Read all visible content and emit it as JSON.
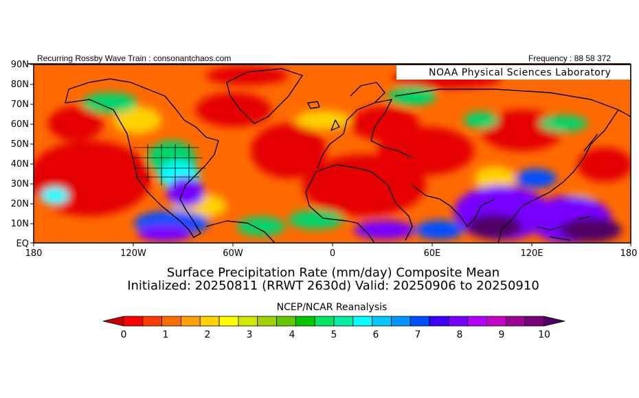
{
  "header": {
    "left": "Recurring Rossby Wave Train : consonantchaos.com",
    "right": "Frequency : 88 58 372",
    "lab": "NOAA Physical Sciences Laboratory"
  },
  "axes": {
    "lat_labels": [
      "90N",
      "80N",
      "70N",
      "60N",
      "50N",
      "40N",
      "30N",
      "20N",
      "10N",
      "EQ"
    ],
    "lon_labels": [
      "180",
      "120W",
      "60W",
      "0",
      "60E",
      "120E",
      "180"
    ]
  },
  "title": {
    "line1": "Surface Precipitation Rate (mm/day) Composite Mean",
    "line2": "Initialized: 20250811 (RRWT 2630d) Valid: 20250906 to 20250910",
    "source": "NCEP/NCAR Reanalysis"
  },
  "colorbar": {
    "labels": [
      "0",
      "1",
      "2",
      "3",
      "4",
      "5",
      "6",
      "7",
      "8",
      "9",
      "10"
    ],
    "colors": [
      "#c80000",
      "#ff0000",
      "#ff3c00",
      "#ff6e00",
      "#ffa000",
      "#ffd200",
      "#ffff00",
      "#d2e600",
      "#a0d200",
      "#64c800",
      "#00c800",
      "#00e664",
      "#00f0a0",
      "#00ffff",
      "#00c8ff",
      "#0096ff",
      "#0050ff",
      "#3c00ff",
      "#7800ff",
      "#b400ff",
      "#c800c8",
      "#a00096",
      "#780078",
      "#500064"
    ]
  },
  "map": {
    "colors": {
      "dry": "#e40000",
      "orange": "#ff6a00",
      "yellow": "#ffd200",
      "green": "#00d46a",
      "cyan": "#00ffff",
      "blue": "#0050ff",
      "purple": "#7800ff",
      "dark-purple": "#500064"
    }
  }
}
